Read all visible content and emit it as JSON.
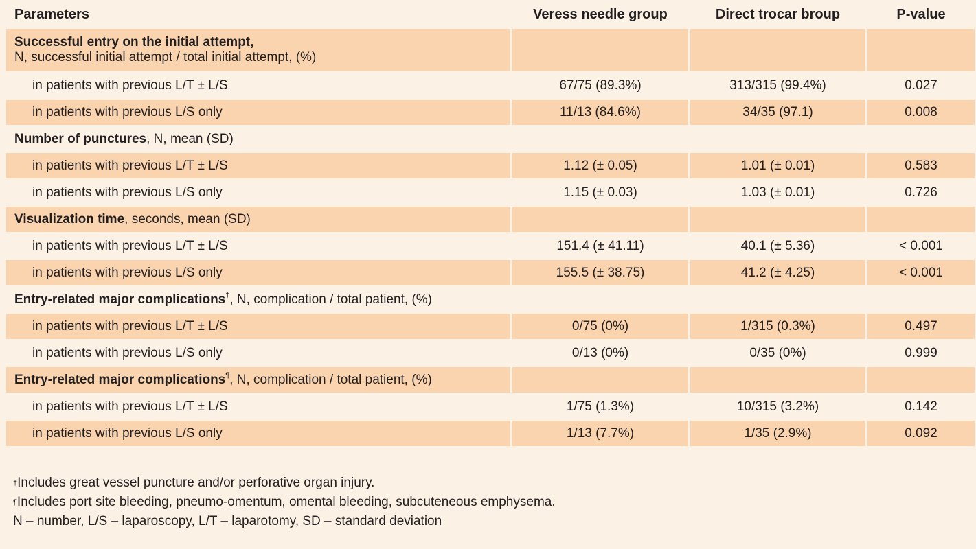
{
  "header": {
    "parameters": "Parameters",
    "veress": "Veress needle group",
    "direct": "Direct trocar broup",
    "pvalue": "P-value"
  },
  "sections": [
    {
      "title": "Successful entry on the initial attempt,",
      "subtitle": "N, successful initial attempt / total initial attempt, (%)",
      "rows": [
        {
          "label": "in patients with previous L/T ± L/S",
          "veress": "67/75 (89.3%)",
          "direct": "313/315 (99.4%)",
          "p": "0.027"
        },
        {
          "label": "in patients with previous L/S only",
          "veress": "11/13 (84.6%)",
          "direct": "34/35 (97.1)",
          "p": "0.008"
        }
      ]
    },
    {
      "title": "Number of punctures",
      "subtitle": ", N, mean (SD)",
      "rows": [
        {
          "label": "in patients with previous L/T ± L/S",
          "veress": "1.12 (± 0.05)",
          "direct": "1.01 (± 0.01)",
          "p": "0.583"
        },
        {
          "label": "in patients with previous L/S only",
          "veress": "1.15 (± 0.03)",
          "direct": "1.03 (± 0.01)",
          "p": "0.726"
        }
      ]
    },
    {
      "title": "Visualization time",
      "subtitle": ", seconds, mean (SD)",
      "rows": [
        {
          "label": "in patients with previous L/T ± L/S",
          "veress": "151.4 (± 41.11)",
          "direct": "40.1 (± 5.36)",
          "p": "< 0.001"
        },
        {
          "label": "in patients with previous L/S only",
          "veress": "155.5 (± 38.75)",
          "direct": "41.2 (± 4.25)",
          "p": "< 0.001"
        }
      ]
    },
    {
      "title": "Entry-related major complications",
      "mark": "†",
      "subtitle": ", N, complication / total patient, (%)",
      "rows": [
        {
          "label": "in patients with previous L/T ± L/S",
          "veress": "0/75 (0%)",
          "direct": "1/315 (0.3%)",
          "p": "0.497"
        },
        {
          "label": "in patients with previous L/S only",
          "veress": "0/13 (0%)",
          "direct": "0/35 (0%)",
          "p": "0.999"
        }
      ]
    },
    {
      "title": "Entry-related major complications",
      "mark": "¶",
      "subtitle": ", N, complication / total patient, (%)",
      "rows": [
        {
          "label": "in patients with previous L/T ± L/S",
          "veress": "1/75 (1.3%)",
          "direct": "10/315 (3.2%)",
          "p": "0.142"
        },
        {
          "label": "in patients with previous L/S only",
          "veress": "1/13 (7.7%)",
          "direct": "1/35 (2.9%)",
          "p": "0.092"
        }
      ]
    }
  ],
  "footnotes": [
    {
      "mark": "†",
      "text": "Includes great vessel puncture and/or perforative organ injury."
    },
    {
      "mark": "¶",
      "text": "Includes port site bleeding, pneumo-omentum, omental bleeding, subcuteneous emphysema."
    },
    {
      "mark": "",
      "text": "N – number, L/S – laparoscopy, L/T – laparotomy, SD – standard deviation"
    }
  ]
}
